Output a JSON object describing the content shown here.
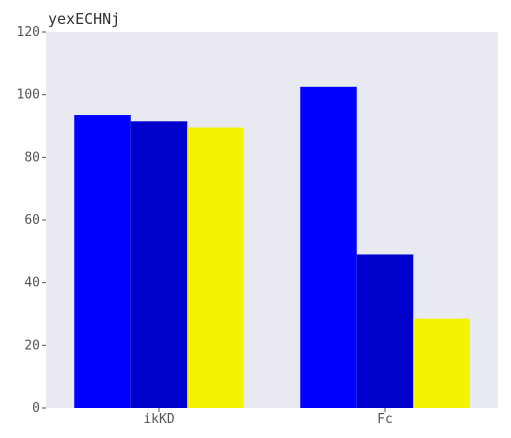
{
  "chart_data": {
    "type": "bar",
    "title": "yexECHNj",
    "xlabel": "",
    "ylabel": "",
    "categories": [
      "ikKD",
      "Fc"
    ],
    "series": [
      {
        "values": [
          93.5,
          102.5
        ],
        "color": "#0000ff"
      },
      {
        "values": [
          91.5,
          49.0
        ],
        "color": "#0000cc"
      },
      {
        "values": [
          89.5,
          28.5
        ],
        "color": "#f4f400"
      }
    ],
    "ylim": [
      0,
      120
    ],
    "yticks": [
      0,
      20,
      40,
      60,
      80,
      100,
      120
    ],
    "grid": false,
    "legend": "none",
    "background": "#e9e9f2"
  }
}
